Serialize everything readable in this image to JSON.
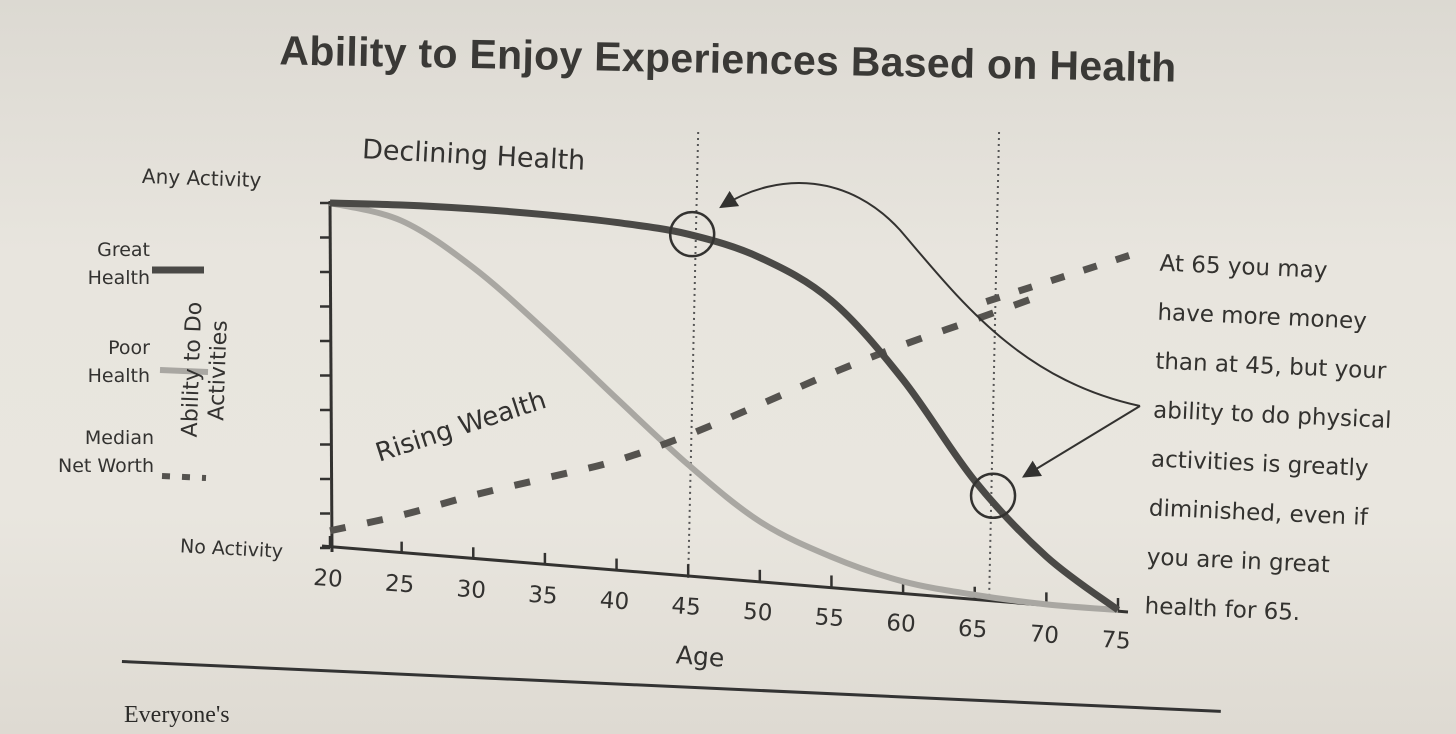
{
  "page": {
    "title": "Ability to Enjoy Experiences Based on Health",
    "footer_text": "Everyone's"
  },
  "legend": {
    "great_health": "Great\nHealth",
    "poor_health": "Poor\nHealth",
    "median_net_worth": "Median\nNet Worth"
  },
  "annotations": {
    "declining_health": "Declining Health",
    "rising_wealth": "Rising Wealth",
    "note": "At 65 you may\nhave more money\nthan at 45, but your\nability to do physical\nactivities is greatly\ndiminished, even if\nyou are in great\nhealth for 65."
  },
  "colors": {
    "great_health": "#4a4946",
    "poor_health": "#a9a7a2",
    "net_worth": "#55534f",
    "ink": "#333230"
  },
  "chart_data": {
    "type": "line",
    "title": "Ability to Enjoy Experiences Based on Health",
    "xlabel": "Age",
    "ylabel": "Ability to Do Activities",
    "xlim": [
      20,
      75
    ],
    "ylim": [
      0,
      10
    ],
    "x_ticks": [
      20,
      25,
      30,
      35,
      40,
      45,
      50,
      55,
      60,
      65,
      70,
      75
    ],
    "y_tick_labels": {
      "top": "Any Activity",
      "bottom": "No Activity"
    },
    "reference_lines": [
      45,
      66
    ],
    "highlight_points": [
      {
        "x": 45,
        "series": "Great Health"
      },
      {
        "x": 66,
        "series": "Great Health"
      }
    ],
    "series": [
      {
        "name": "Great Health",
        "style": "solid-thick",
        "x": [
          20,
          25,
          30,
          35,
          40,
          45,
          50,
          55,
          60,
          65,
          70,
          75
        ],
        "y": [
          10.0,
          9.95,
          9.85,
          9.7,
          9.5,
          9.2,
          8.6,
          7.5,
          5.5,
          3.0,
          1.2,
          0.0
        ]
      },
      {
        "name": "Poor Health",
        "style": "solid-light",
        "x": [
          20,
          25,
          30,
          35,
          40,
          45,
          50,
          55,
          60,
          65,
          70,
          75
        ],
        "y": [
          10.0,
          9.5,
          8.2,
          6.5,
          4.7,
          3.0,
          1.6,
          0.8,
          0.3,
          0.1,
          0.0,
          0.0
        ]
      },
      {
        "name": "Median Net Worth",
        "style": "dashed",
        "x": [
          20,
          25,
          30,
          35,
          40,
          45,
          50,
          55,
          60,
          65,
          70
        ],
        "y": [
          0.5,
          1.1,
          1.8,
          2.4,
          3.0,
          3.8,
          4.7,
          5.6,
          6.4,
          7.1,
          7.8
        ]
      }
    ]
  }
}
